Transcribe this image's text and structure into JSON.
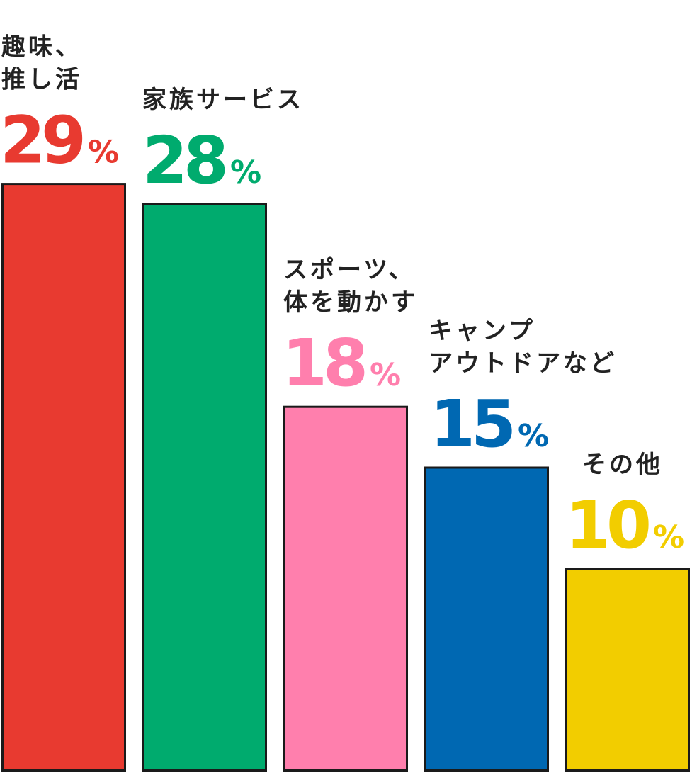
{
  "chart_data": {
    "type": "bar",
    "categories": [
      [
        "趣味、",
        "推し活"
      ],
      [
        "家族サービス"
      ],
      [
        "スポーツ、",
        "体を動かす"
      ],
      [
        "キャンプ",
        "アウトドアなど"
      ],
      [
        "その他"
      ]
    ],
    "values": [
      29,
      28,
      18,
      15,
      10
    ],
    "value_unit": "%",
    "colors": [
      "#e83a30",
      "#00ab6e",
      "#ff7fad",
      "#0068b2",
      "#f2cd00"
    ],
    "bar_outline_color": "#1a1a1a",
    "label_color": "#222222",
    "ylim": [
      0,
      29
    ],
    "title": "",
    "xlabel": "",
    "ylabel": "",
    "grid": false,
    "legend": "none"
  }
}
